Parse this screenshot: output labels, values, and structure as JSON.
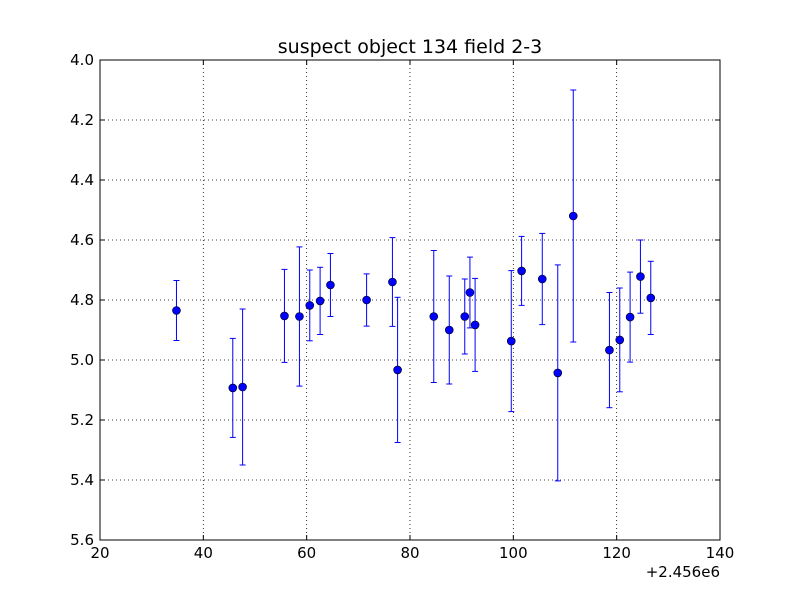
{
  "chart_data": {
    "type": "scatter",
    "title": "suspect object 134 field 2-3",
    "xlabel": "",
    "ylabel": "",
    "x_offset_label": "+2.456e6",
    "xlim": [
      20,
      140
    ],
    "ylim": [
      4.0,
      5.6
    ],
    "y_inverted": true,
    "grid": true,
    "x_ticks": [
      "20",
      "40",
      "60",
      "80",
      "100",
      "120",
      "140"
    ],
    "y_ticks": [
      "4.0",
      "4.2",
      "4.4",
      "4.6",
      "4.8",
      "5.0",
      "5.2",
      "5.4",
      "5.6"
    ],
    "x_tick_values": [
      20,
      40,
      60,
      80,
      100,
      120,
      140
    ],
    "y_tick_values": [
      4.0,
      4.2,
      4.4,
      4.6,
      4.8,
      5.0,
      5.2,
      5.4,
      5.6
    ],
    "marker_color": "#0000ff",
    "series": [
      {
        "points": [
          {
            "x": 34.8,
            "y": 4.835,
            "err": 0.1
          },
          {
            "x": 45.7,
            "y": 5.093,
            "err": 0.165
          },
          {
            "x": 47.6,
            "y": 5.09,
            "err": 0.26
          },
          {
            "x": 55.7,
            "y": 4.853,
            "err": 0.155
          },
          {
            "x": 58.6,
            "y": 4.855,
            "err": 0.232
          },
          {
            "x": 60.6,
            "y": 4.818,
            "err": 0.118
          },
          {
            "x": 62.6,
            "y": 4.803,
            "err": 0.112
          },
          {
            "x": 64.6,
            "y": 4.75,
            "err": 0.105
          },
          {
            "x": 71.6,
            "y": 4.8,
            "err": 0.087
          },
          {
            "x": 76.6,
            "y": 4.74,
            "err": 0.148
          },
          {
            "x": 77.6,
            "y": 5.033,
            "err": 0.242
          },
          {
            "x": 84.6,
            "y": 4.855,
            "err": 0.22
          },
          {
            "x": 87.6,
            "y": 4.9,
            "err": 0.18
          },
          {
            "x": 90.6,
            "y": 4.855,
            "err": 0.125
          },
          {
            "x": 91.6,
            "y": 4.775,
            "err": 0.118
          },
          {
            "x": 92.6,
            "y": 4.883,
            "err": 0.155
          },
          {
            "x": 99.6,
            "y": 4.937,
            "err": 0.235
          },
          {
            "x": 101.6,
            "y": 4.703,
            "err": 0.115
          },
          {
            "x": 105.6,
            "y": 4.73,
            "err": 0.152
          },
          {
            "x": 108.6,
            "y": 5.043,
            "err": 0.36
          },
          {
            "x": 111.6,
            "y": 4.52,
            "err": 0.42
          },
          {
            "x": 118.6,
            "y": 4.967,
            "err": 0.192
          },
          {
            "x": 120.6,
            "y": 4.933,
            "err": 0.173
          },
          {
            "x": 122.6,
            "y": 4.857,
            "err": 0.15
          },
          {
            "x": 124.6,
            "y": 4.722,
            "err": 0.122
          },
          {
            "x": 126.6,
            "y": 4.793,
            "err": 0.122
          }
        ]
      }
    ]
  }
}
